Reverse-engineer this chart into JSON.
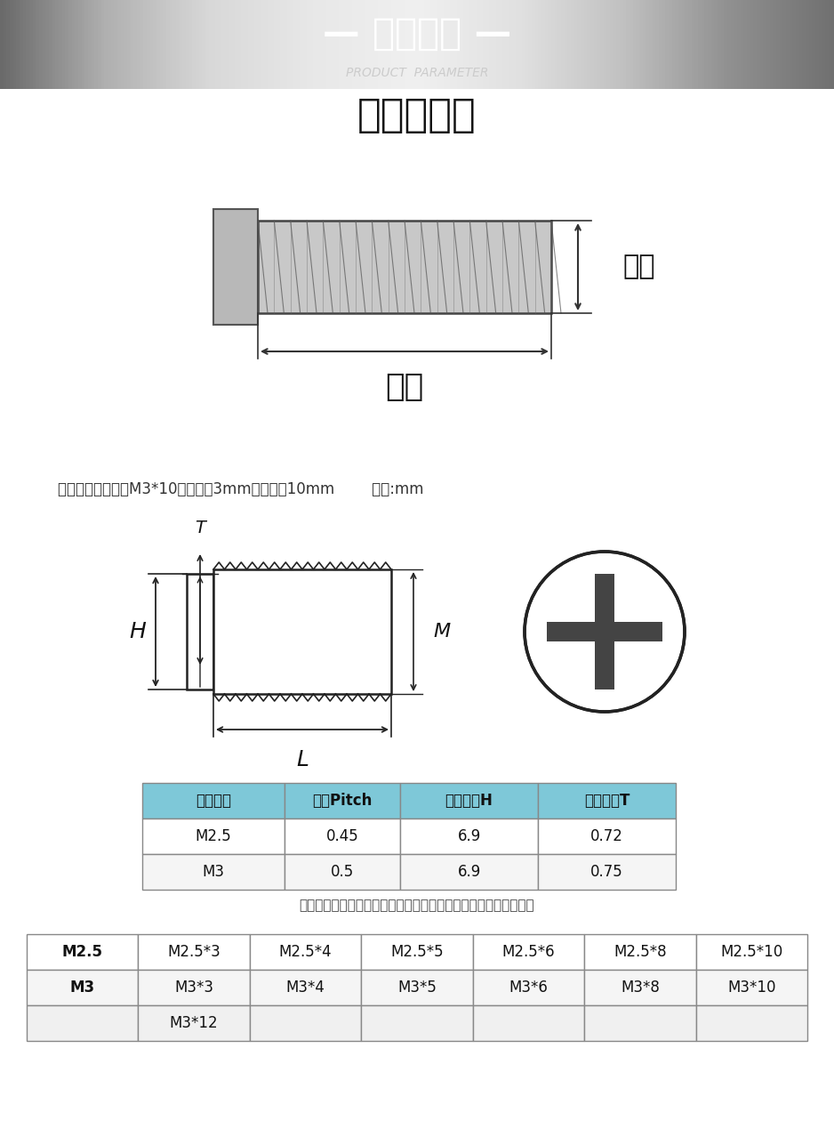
{
  "title_cn": "产品参数",
  "title_en": "PRODUCT PARAMETER",
  "subtitle": "实物示意图",
  "note": "尺寸说明：例如：M3*10指直径为3mm，长度为10mm        单位:mm",
  "table1_header": [
    "螺纹规格",
    "螺距Pitch",
    "头部直径H",
    "头部厚度T"
  ],
  "table1_data": [
    [
      "M2.5",
      "0.45",
      "6.9",
      "0.72"
    ],
    [
      "M3",
      "0.5",
      "6.9",
      "0.75"
    ]
  ],
  "table1_note": "注：存在正负公差，请以实物为准，介意者慎拍或联系客服咨询！",
  "table2_data": [
    [
      "M2.5",
      "M2.5*3",
      "M2.5*4",
      "M2.5*5",
      "M2.5*6",
      "M2.5*8",
      "M2.5*10"
    ],
    [
      "M3",
      "M3*3",
      "M3*4",
      "M3*5",
      "M3*6",
      "M3*8",
      "M3*10"
    ],
    [
      "",
      "M3*12",
      "",
      "",
      "",
      "",
      ""
    ]
  ],
  "header_bg": "#7EC8D8",
  "row_even_bg": "#FFFFFF",
  "row_odd_bg": "#F5F5F5",
  "table_border": "#AAAAAA",
  "text_color": "#1A1A1A",
  "bg_color": "#FFFFFF",
  "header_bg2": "#D8EEF5",
  "label_H": "H",
  "label_L": "L",
  "label_M": "M",
  "label_T": "T",
  "label_diameter": "直径",
  "label_length": "长度"
}
